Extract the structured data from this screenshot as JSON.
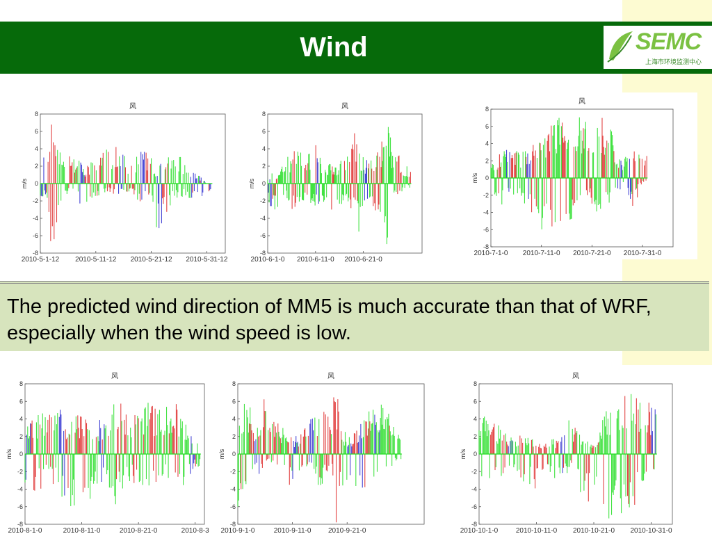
{
  "slide": {
    "title": "Wind",
    "caption": "The predicted wind direction of MM5 is much accurate than that of WRF, especially when the wind speed is low.",
    "logo": {
      "text": "SEMC",
      "subtitle": "上海市环境监测中心"
    }
  },
  "colors": {
    "header": "#066a0a",
    "caption_bg": "#d7e4bd",
    "series_green": "#22dd22",
    "series_red": "#dd2222",
    "series_blue": "#2222cc"
  },
  "chart_data": [
    {
      "type": "bar",
      "title": "风",
      "ylabel": "m/s",
      "ylim": [
        -8,
        8
      ],
      "yticks": [
        "8",
        "6",
        "4",
        "2",
        "0",
        "-2",
        "-4",
        "-6",
        "-8"
      ],
      "xticks": [
        "2010-5-1-12",
        "2010-5-11-12",
        "2010-5-21-12",
        "2010-5-31-12"
      ],
      "days": 31,
      "envelope": [
        [
          0,
          2.5,
          -1.5
        ],
        [
          1,
          4.5,
          -2
        ],
        [
          2,
          8,
          -8
        ],
        [
          3,
          5,
          -5
        ],
        [
          4,
          2.5,
          -1
        ],
        [
          6,
          3.5,
          -1.5
        ],
        [
          8,
          2,
          -4
        ],
        [
          10,
          3,
          -1.5
        ],
        [
          12,
          4.5,
          -1
        ],
        [
          14,
          5,
          -1.5
        ],
        [
          16,
          2.5,
          -1
        ],
        [
          18,
          4,
          -2.5
        ],
        [
          20,
          3.5,
          -1
        ],
        [
          21,
          2,
          -6
        ],
        [
          23,
          3,
          -3
        ],
        [
          25,
          4,
          -1.5
        ],
        [
          27,
          1.5,
          -2
        ],
        [
          29,
          0.8,
          -2.5
        ],
        [
          30,
          0,
          -1
        ]
      ],
      "dominant": [
        "blue",
        "red",
        "red",
        "green",
        "green",
        "red",
        "green",
        "blue",
        "red",
        "green",
        "red",
        "green",
        "red",
        "red",
        "blue",
        "green",
        "red",
        "green",
        "blue",
        "red",
        "green",
        "blue",
        "red",
        "green",
        "green",
        "green",
        "green",
        "blue",
        "blue",
        "blue",
        "blue"
      ]
    },
    {
      "type": "bar",
      "title": "风",
      "ylabel": "m/s",
      "ylim": [
        -8,
        8
      ],
      "yticks": [
        "8",
        "6",
        "4",
        "2",
        "0",
        "-2",
        "-4",
        "-6",
        "-8"
      ],
      "xticks": [
        "2010-6-1-0",
        "2010-6-11-0",
        "2010-6-21-0"
      ],
      "days": 30,
      "envelope": [
        [
          0,
          1,
          -2.5
        ],
        [
          2,
          1.5,
          -3.5
        ],
        [
          4,
          3,
          -2
        ],
        [
          6,
          4,
          -4
        ],
        [
          8,
          3.5,
          -1.5
        ],
        [
          10,
          4.5,
          -3
        ],
        [
          12,
          2.5,
          -2.5
        ],
        [
          14,
          2,
          -4
        ],
        [
          16,
          3,
          -2
        ],
        [
          18,
          6,
          -3.5
        ],
        [
          19,
          5.5,
          -6
        ],
        [
          20,
          3,
          -2
        ],
        [
          22,
          3.5,
          -2.5
        ],
        [
          24,
          5,
          -6.5
        ],
        [
          25,
          8,
          -8
        ],
        [
          26,
          4,
          -1.5
        ],
        [
          28,
          3,
          -1
        ],
        [
          29,
          2,
          -0.5
        ]
      ],
      "dominant": [
        "blue",
        "red",
        "green",
        "green",
        "green",
        "red",
        "green",
        "red",
        "green",
        "green",
        "blue",
        "green",
        "green",
        "red",
        "green",
        "green",
        "green",
        "red",
        "red",
        "green",
        "blue",
        "green",
        "red",
        "red",
        "green",
        "green",
        "green",
        "red",
        "green",
        "green"
      ]
    },
    {
      "type": "bar",
      "title": "风",
      "ylabel": "m/s",
      "ylim": [
        -8,
        8
      ],
      "yticks": [
        "8",
        "6",
        "4",
        "2",
        "0",
        "-2",
        "-4",
        "-6",
        "-8"
      ],
      "xticks": [
        "2010-7-1-0",
        "2010-7-11-0",
        "2010-7-21-0",
        "2010-7-31-0"
      ],
      "days": 31,
      "envelope": [
        [
          0,
          2,
          -2
        ],
        [
          2,
          3,
          -3.5
        ],
        [
          4,
          4,
          -2
        ],
        [
          6,
          3,
          -2
        ],
        [
          8,
          4,
          -5
        ],
        [
          10,
          5,
          -6
        ],
        [
          12,
          7,
          -7.5
        ],
        [
          14,
          7.5,
          -7.5
        ],
        [
          16,
          6,
          -5
        ],
        [
          18,
          7.5,
          -4
        ],
        [
          20,
          5,
          -3
        ],
        [
          22,
          7,
          -5
        ],
        [
          24,
          6,
          -4
        ],
        [
          25,
          3,
          -2
        ],
        [
          26,
          2.5,
          -1
        ],
        [
          28,
          3.5,
          -4
        ],
        [
          30,
          3,
          -0.5
        ]
      ],
      "dominant": [
        "green",
        "red",
        "green",
        "blue",
        "red",
        "green",
        "green",
        "blue",
        "red",
        "green",
        "green",
        "red",
        "green",
        "green",
        "red",
        "green",
        "red",
        "green",
        "green",
        "red",
        "green",
        "green",
        "red",
        "green",
        "green",
        "blue",
        "green",
        "blue",
        "red",
        "red",
        "red"
      ]
    },
    {
      "type": "bar",
      "title": "风",
      "ylabel": "m/s",
      "ylim": [
        -8,
        8
      ],
      "yticks": [
        "8",
        "6",
        "4",
        "2",
        "0",
        "-2",
        "-4",
        "-6",
        "-8"
      ],
      "xticks": [
        "2010-8-1-0",
        "2010-8-11-0",
        "2010-8-21-0",
        "2010-8-3"
      ],
      "days": 31,
      "envelope": [
        [
          0,
          3,
          -4
        ],
        [
          2,
          4.5,
          -5
        ],
        [
          4,
          5,
          -3
        ],
        [
          6,
          5.5,
          -4.5
        ],
        [
          8,
          4,
          -6
        ],
        [
          10,
          5,
          -7
        ],
        [
          12,
          3,
          -5
        ],
        [
          14,
          5,
          -3
        ],
        [
          16,
          6.5,
          -6
        ],
        [
          18,
          5,
          -3
        ],
        [
          20,
          5.5,
          -4
        ],
        [
          22,
          6,
          -4.5
        ],
        [
          24,
          5,
          -3.5
        ],
        [
          26,
          6.5,
          -3
        ],
        [
          28,
          4.5,
          -4
        ],
        [
          30,
          2,
          -1.5
        ]
      ],
      "dominant": [
        "blue",
        "red",
        "green",
        "green",
        "red",
        "green",
        "blue",
        "red",
        "green",
        "red",
        "red",
        "green",
        "green",
        "blue",
        "green",
        "green",
        "red",
        "green",
        "green",
        "red",
        "green",
        "green",
        "red",
        "green",
        "green",
        "green",
        "red",
        "green",
        "green",
        "blue",
        "green"
      ]
    },
    {
      "type": "bar",
      "title": "风",
      "ylabel": "m/s",
      "ylim": [
        -8,
        8
      ],
      "yticks": [
        "8",
        "6",
        "4",
        "2",
        "0",
        "-2",
        "-4",
        "-6",
        "-8"
      ],
      "xticks": [
        "2010-9-1-0",
        "2010-9-11-0",
        "2010-9-21-0"
      ],
      "days": 30,
      "envelope": [
        [
          0,
          5,
          -6
        ],
        [
          2,
          7,
          -7
        ],
        [
          3,
          4,
          -3
        ],
        [
          5,
          6.5,
          -1.5
        ],
        [
          7,
          4,
          -1
        ],
        [
          9,
          2.5,
          -4
        ],
        [
          11,
          2,
          -3
        ],
        [
          13,
          4,
          -1
        ],
        [
          15,
          5,
          -4
        ],
        [
          17,
          6,
          -1.5
        ],
        [
          18,
          8,
          -8
        ],
        [
          19,
          3,
          -4
        ],
        [
          21,
          2,
          -6
        ],
        [
          23,
          5,
          -4
        ],
        [
          25,
          5.5,
          -5
        ],
        [
          27,
          6,
          -3
        ],
        [
          29,
          3,
          -1
        ]
      ],
      "dominant": [
        "green",
        "green",
        "red",
        "blue",
        "red",
        "red",
        "red",
        "red",
        "green",
        "red",
        "blue",
        "red",
        "red",
        "blue",
        "green",
        "red",
        "red",
        "red",
        "red",
        "green",
        "blue",
        "red",
        "blue",
        "red",
        "green",
        "blue",
        "green",
        "green",
        "green",
        "green"
      ]
    },
    {
      "type": "bar",
      "title": "风",
      "ylabel": "m/s",
      "ylim": [
        -8,
        8
      ],
      "yticks": [
        "8",
        "6",
        "4",
        "2",
        "0",
        "-2",
        "-4",
        "-6",
        "-8"
      ],
      "xticks": [
        "2010-10-1-0",
        "2010-10-11-0",
        "2010-10-21-0",
        "2010-10-31-0"
      ],
      "days": 31,
      "envelope": [
        [
          0,
          5,
          -3
        ],
        [
          2,
          4,
          -4
        ],
        [
          4,
          3,
          -2.5
        ],
        [
          6,
          2,
          -1.5
        ],
        [
          8,
          2.5,
          -4
        ],
        [
          10,
          1.5,
          -4
        ],
        [
          12,
          1.5,
          -2
        ],
        [
          14,
          2,
          -3.5
        ],
        [
          16,
          4.5,
          -2
        ],
        [
          18,
          2,
          -5
        ],
        [
          20,
          1,
          -6
        ],
        [
          22,
          5,
          -7.5
        ],
        [
          24,
          6.5,
          -8
        ],
        [
          26,
          7.5,
          -8
        ],
        [
          28,
          6,
          -5
        ],
        [
          30,
          6,
          -2
        ]
      ],
      "dominant": [
        "green",
        "green",
        "red",
        "green",
        "red",
        "blue",
        "green",
        "red",
        "green",
        "red",
        "red",
        "red",
        "green",
        "red",
        "blue",
        "green",
        "red",
        "green",
        "green",
        "red",
        "green",
        "green",
        "green",
        "green",
        "green",
        "red",
        "green",
        "red",
        "green",
        "red",
        "blue"
      ]
    }
  ]
}
